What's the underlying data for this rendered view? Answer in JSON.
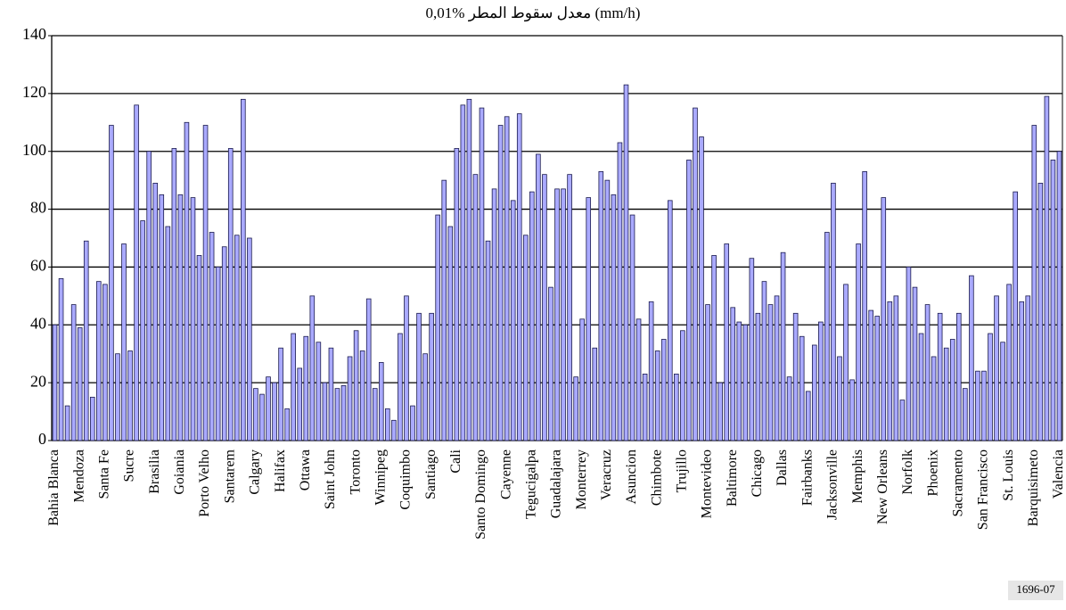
{
  "chart_data": {
    "type": "bar",
    "title": "معدل سقوط المطر %0,01 (mm/h)",
    "annotation": "1696-07",
    "categories": [
      "Bahia Blanca",
      null,
      null,
      null,
      "Mendoza",
      null,
      null,
      null,
      "Santa Fe",
      null,
      null,
      null,
      "Sucre",
      null,
      null,
      null,
      "Brasilia",
      null,
      null,
      null,
      "Goiania",
      null,
      null,
      null,
      "Porto Velho",
      null,
      null,
      null,
      "Santarem",
      null,
      null,
      null,
      "Calgary",
      null,
      null,
      null,
      "Halifax",
      null,
      null,
      null,
      "Ottawa",
      null,
      null,
      null,
      "Saint John",
      null,
      null,
      null,
      "Toronto",
      null,
      null,
      null,
      "Winnipeg",
      null,
      null,
      null,
      "Coquimbo",
      null,
      null,
      null,
      "Santiago",
      null,
      null,
      null,
      "Cali",
      null,
      null,
      null,
      "Santo Domingo",
      null,
      null,
      null,
      "Cayenne",
      null,
      null,
      null,
      "Tegucigalpa",
      null,
      null,
      null,
      "Guadalajara",
      null,
      null,
      null,
      "Monterrey",
      null,
      null,
      null,
      "Veracruz",
      null,
      null,
      null,
      "Asuncion",
      null,
      null,
      null,
      "Chimbote",
      null,
      null,
      null,
      "Trujillo",
      null,
      null,
      null,
      "Montevideo",
      null,
      null,
      null,
      "Baltimore",
      null,
      null,
      null,
      "Chicago",
      null,
      null,
      null,
      "Dallas",
      null,
      null,
      null,
      "Fairbanks",
      null,
      null,
      null,
      "Jacksonville",
      null,
      null,
      null,
      "Memphis",
      null,
      null,
      null,
      "New Orleans",
      null,
      null,
      null,
      "Norfolk",
      null,
      null,
      null,
      "Phoenix",
      null,
      null,
      null,
      "Sacramento",
      null,
      null,
      null,
      "San Francisco",
      null,
      null,
      null,
      "St. Louis",
      null,
      null,
      null,
      "Barquisimeto",
      null,
      null,
      null,
      "Valencia"
    ],
    "values": [
      40,
      56,
      12,
      47,
      39,
      69,
      15,
      55,
      54,
      109,
      30,
      68,
      31,
      116,
      76,
      100,
      89,
      85,
      74,
      101,
      85,
      110,
      84,
      64,
      109,
      72,
      60,
      67,
      101,
      71,
      118,
      70,
      18,
      16,
      22,
      20,
      32,
      11,
      37,
      25,
      36,
      50,
      34,
      20,
      32,
      18,
      19,
      29,
      38,
      31,
      49,
      18,
      27,
      11,
      7,
      37,
      50,
      12,
      44,
      30,
      44,
      78,
      90,
      74,
      101,
      116,
      118,
      92,
      115,
      69,
      87,
      109,
      112,
      83,
      113,
      71,
      86,
      99,
      92,
      53,
      87,
      87,
      92,
      22,
      42,
      84,
      32,
      93,
      90,
      85,
      103,
      123,
      78,
      42,
      23,
      48,
      31,
      35,
      83,
      23,
      38,
      97,
      115,
      105,
      47,
      64,
      20,
      68,
      46,
      41,
      40,
      63,
      44,
      55,
      47,
      50,
      65,
      22,
      44,
      36,
      17,
      33,
      41,
      72,
      89,
      29,
      54,
      21,
      68,
      93,
      45,
      43,
      84,
      48,
      50,
      14,
      60,
      53,
      37,
      47,
      29,
      44,
      32,
      35,
      44,
      18,
      57,
      24,
      24,
      37,
      50,
      34,
      54,
      86,
      48,
      50,
      109,
      89,
      119,
      97,
      100
    ],
    "color": "#aaaaff",
    "ylim": [
      0,
      140
    ],
    "yticks": [
      0,
      20,
      40,
      60,
      80,
      100,
      120,
      140
    ],
    "grid": true
  }
}
